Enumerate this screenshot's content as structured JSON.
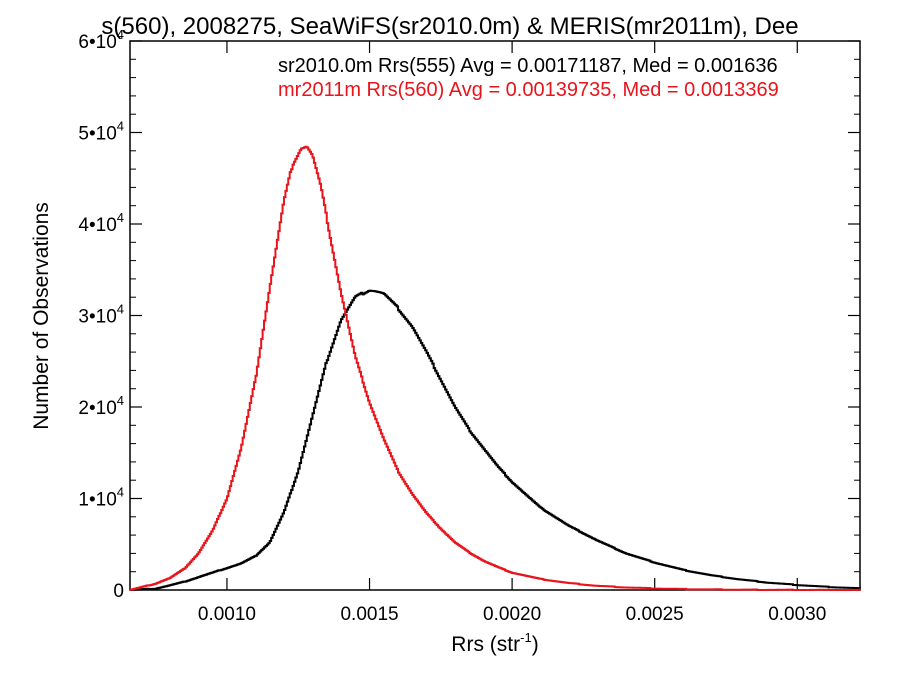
{
  "chart_data": {
    "type": "line",
    "title": "s(560), 2008275, SeaWiFS(sr2010.0m) & MERIS(mr2011m), Dee",
    "xlabel": "Rrs (str",
    "xlabel_sup": "-1",
    "xlabel_tail": ")",
    "ylabel": "Number of Observations",
    "xlim": [
      0.00066,
      0.00322
    ],
    "ylim": [
      0,
      60000
    ],
    "x_ticks": [
      {
        "value": 0.001,
        "label": "0.0010"
      },
      {
        "value": 0.0015,
        "label": "0.0015"
      },
      {
        "value": 0.002,
        "label": "0.0020"
      },
      {
        "value": 0.0025,
        "label": "0.0025"
      },
      {
        "value": 0.003,
        "label": "0.0030"
      }
    ],
    "y_ticks": [
      {
        "value": 0,
        "mant": "0",
        "exp": ""
      },
      {
        "value": 10000,
        "mant": "1•10",
        "exp": "4"
      },
      {
        "value": 20000,
        "mant": "2•10",
        "exp": "4"
      },
      {
        "value": 30000,
        "mant": "3•10",
        "exp": "4"
      },
      {
        "value": 40000,
        "mant": "4•10",
        "exp": "4"
      },
      {
        "value": 50000,
        "mant": "5•10",
        "exp": "4"
      },
      {
        "value": 60000,
        "mant": "6•10",
        "exp": "4"
      }
    ],
    "grid": false,
    "legend_position": "top-right",
    "annotations": [
      {
        "text": "sr2010.0m Rrs(555) Avg = 0.00171187, Med = 0.001636",
        "color": "#000000"
      },
      {
        "text": "mr2011m Rrs(560) Avg = 0.00139735, Med = 0.0013369",
        "color": "#e8141c"
      }
    ],
    "series": [
      {
        "color": "#000000",
        "x": [
          0.00066,
          0.00075,
          0.0008,
          0.00085,
          0.0009,
          0.00095,
          0.001,
          0.00105,
          0.0011,
          0.00115,
          0.0012,
          0.00125,
          0.0013,
          0.00135,
          0.0014,
          0.00145,
          0.0015,
          0.00152,
          0.00155,
          0.0016,
          0.00165,
          0.0017,
          0.00175,
          0.0018,
          0.00185,
          0.0019,
          0.00195,
          0.002,
          0.0021,
          0.0022,
          0.0023,
          0.0024,
          0.0025,
          0.0026,
          0.0027,
          0.0028,
          0.0029,
          0.003,
          0.0031,
          0.00322
        ],
        "values": [
          0,
          150,
          500,
          900,
          1400,
          1900,
          2400,
          2900,
          3700,
          5200,
          8500,
          13000,
          19000,
          25000,
          29500,
          32000,
          32800,
          32700,
          32400,
          30800,
          28800,
          26000,
          23000,
          20000,
          17500,
          15500,
          13500,
          11800,
          9000,
          7000,
          5400,
          4000,
          3000,
          2200,
          1600,
          1150,
          800,
          550,
          350,
          180
        ]
      },
      {
        "color": "#e8141c",
        "x": [
          0.00066,
          0.0007,
          0.00075,
          0.0008,
          0.00085,
          0.0009,
          0.00095,
          0.001,
          0.00105,
          0.0011,
          0.00115,
          0.0012,
          0.00123,
          0.00126,
          0.00128,
          0.0013,
          0.00133,
          0.00136,
          0.0014,
          0.00145,
          0.0015,
          0.00155,
          0.0016,
          0.00165,
          0.0017,
          0.00175,
          0.0018,
          0.00185,
          0.0019,
          0.00195,
          0.002,
          0.0021,
          0.0022,
          0.0023,
          0.0024,
          0.0025,
          0.0026,
          0.0027,
          0.0028,
          0.003,
          0.00322
        ],
        "values": [
          0,
          300,
          700,
          1300,
          2300,
          4000,
          6500,
          10000,
          15500,
          23000,
          33000,
          42500,
          46500,
          48300,
          48500,
          47500,
          44000,
          39000,
          32500,
          25500,
          20500,
          16500,
          13000,
          10500,
          8400,
          6700,
          5200,
          4100,
          3200,
          2500,
          1900,
          1200,
          750,
          450,
          280,
          170,
          100,
          60,
          30,
          10,
          0
        ]
      }
    ]
  }
}
